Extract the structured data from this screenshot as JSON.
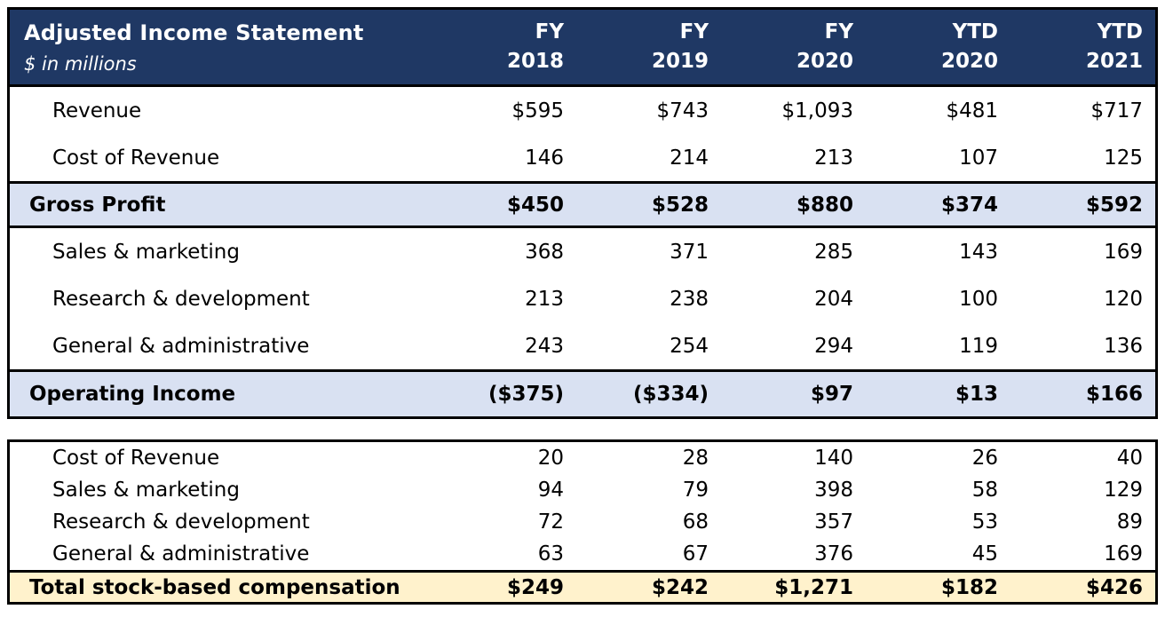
{
  "header": {
    "title": "Adjusted Income Statement",
    "subtitle": "$ in millions",
    "columns": [
      {
        "period": "FY",
        "year": "2018"
      },
      {
        "period": "FY",
        "year": "2019"
      },
      {
        "period": "FY",
        "year": "2020"
      },
      {
        "period": "YTD",
        "year": "2020"
      },
      {
        "period": "YTD",
        "year": "2021"
      }
    ]
  },
  "colors": {
    "header_bg": "#1F3864",
    "header_text": "#FFFFFF",
    "subtotal_row_bg": "#D9E1F2",
    "total_row_bg": "#FFF2CC",
    "border": "#000000"
  },
  "chart_data": {
    "type": "table",
    "title": "Adjusted Income Statement",
    "units": "$ in millions",
    "columns": [
      "FY 2018",
      "FY 2019",
      "FY 2020",
      "YTD 2020",
      "YTD 2021"
    ],
    "sections": [
      {
        "name": "income-statement",
        "rows": [
          {
            "label": "Revenue",
            "values": [
              "$595",
              "$743",
              "$1,093",
              "$481",
              "$717"
            ],
            "emphasis": "normal"
          },
          {
            "label": "Cost of Revenue",
            "values": [
              "146",
              "214",
              "213",
              "107",
              "125"
            ],
            "emphasis": "normal"
          },
          {
            "label": "Gross Profit",
            "values": [
              "$450",
              "$528",
              "$880",
              "$374",
              "$592"
            ],
            "emphasis": "subtotal"
          },
          {
            "label": "Sales & marketing",
            "values": [
              "368",
              "371",
              "285",
              "143",
              "169"
            ],
            "emphasis": "normal"
          },
          {
            "label": "Research & development",
            "values": [
              "213",
              "238",
              "204",
              "100",
              "120"
            ],
            "emphasis": "normal"
          },
          {
            "label": "General & administrative",
            "values": [
              "243",
              "254",
              "294",
              "119",
              "136"
            ],
            "emphasis": "normal"
          },
          {
            "label": "Operating Income",
            "values": [
              "($375)",
              "($334)",
              "$97",
              "$13",
              "$166"
            ],
            "emphasis": "subtotal"
          }
        ]
      },
      {
        "name": "stock-based-compensation",
        "rows": [
          {
            "label": "Cost of Revenue",
            "values": [
              "20",
              "28",
              "140",
              "26",
              "40"
            ],
            "emphasis": "normal"
          },
          {
            "label": "Sales & marketing",
            "values": [
              "94",
              "79",
              "398",
              "58",
              "129"
            ],
            "emphasis": "normal"
          },
          {
            "label": "Research & development",
            "values": [
              "72",
              "68",
              "357",
              "53",
              "89"
            ],
            "emphasis": "normal"
          },
          {
            "label": "General & administrative",
            "values": [
              "63",
              "67",
              "376",
              "45",
              "169"
            ],
            "emphasis": "normal"
          },
          {
            "label": "Total stock-based compensation",
            "values": [
              "$249",
              "$242",
              "$1,271",
              "$182",
              "$426"
            ],
            "emphasis": "total"
          }
        ]
      }
    ]
  }
}
